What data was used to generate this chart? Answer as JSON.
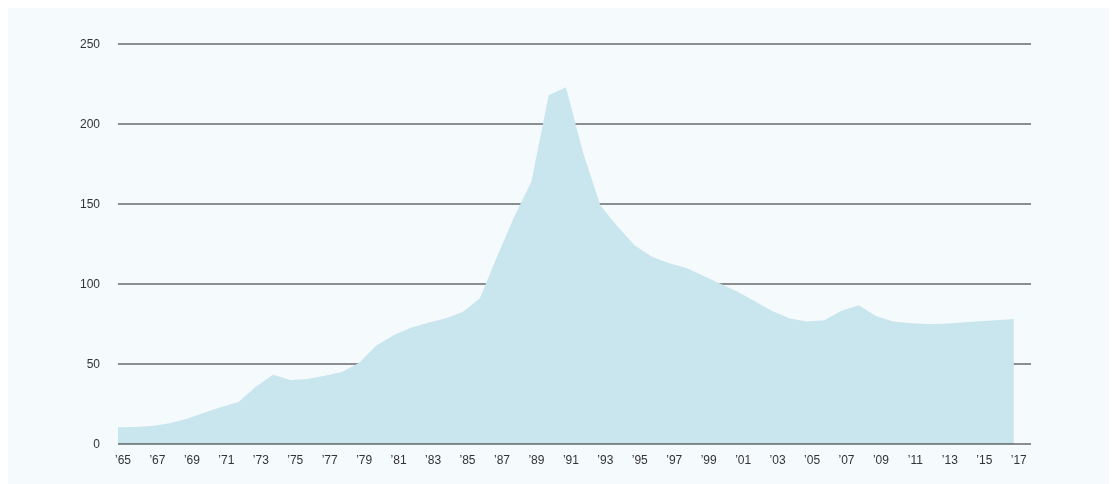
{
  "chart_data": {
    "type": "area",
    "x": [
      1965,
      1966,
      1967,
      1968,
      1969,
      1970,
      1971,
      1972,
      1973,
      1974,
      1975,
      1976,
      1977,
      1978,
      1979,
      1980,
      1981,
      1982,
      1983,
      1984,
      1985,
      1986,
      1987,
      1988,
      1989,
      1990,
      1991,
      1992,
      1993,
      1994,
      1995,
      1996,
      1997,
      1998,
      1999,
      2000,
      2001,
      2002,
      2003,
      2004,
      2005,
      2006,
      2007,
      2008,
      2009,
      2010,
      2011,
      2012,
      2013,
      2014,
      2015,
      2016,
      2017
    ],
    "series": [
      {
        "color": "#c9e5ee",
        "values": [
          10.5,
          10.6,
          11.2,
          12.9,
          15.8,
          19.6,
          23.1,
          26.2,
          35.8,
          43.3,
          40,
          40.6,
          42.7,
          45,
          50.8,
          61.5,
          67.9,
          72.7,
          75.8,
          78.5,
          82.5,
          91,
          117,
          142,
          164,
          218,
          223,
          182,
          149,
          136,
          124,
          117,
          113,
          110,
          105,
          100,
          95,
          89,
          83,
          78.5,
          76.5,
          77.3,
          83.3,
          86.7,
          80,
          76.5,
          75.4,
          75,
          75.2,
          75.9,
          76.7,
          77.3,
          78.1
        ]
      }
    ],
    "xlim": [
      1965,
      2018
    ],
    "xticks": [
      {
        "value": 1965,
        "label": "’65"
      },
      {
        "value": 1967,
        "label": "’67"
      },
      {
        "value": 1969,
        "label": "’69"
      },
      {
        "value": 1971,
        "label": "’71"
      },
      {
        "value": 1973,
        "label": "’73"
      },
      {
        "value": 1975,
        "label": "’75"
      },
      {
        "value": 1977,
        "label": "’77"
      },
      {
        "value": 1979,
        "label": "’79"
      },
      {
        "value": 1981,
        "label": "’81"
      },
      {
        "value": 1983,
        "label": "’83"
      },
      {
        "value": 1985,
        "label": "’85"
      },
      {
        "value": 1987,
        "label": "’87"
      },
      {
        "value": 1989,
        "label": "’89"
      },
      {
        "value": 1991,
        "label": "’91"
      },
      {
        "value": 1993,
        "label": "’93"
      },
      {
        "value": 1995,
        "label": "’95"
      },
      {
        "value": 1997,
        "label": "’97"
      },
      {
        "value": 1999,
        "label": "’99"
      },
      {
        "value": 2001,
        "label": "’01"
      },
      {
        "value": 2003,
        "label": "’03"
      },
      {
        "value": 2005,
        "label": "’05"
      },
      {
        "value": 2007,
        "label": "’07"
      },
      {
        "value": 2009,
        "label": "’09"
      },
      {
        "value": 2011,
        "label": "’11"
      },
      {
        "value": 2013,
        "label": "’13"
      },
      {
        "value": 2015,
        "label": "’15"
      },
      {
        "value": 2017,
        "label": "’17"
      }
    ],
    "ylim": [
      0,
      250
    ],
    "yticks": [
      0,
      50,
      100,
      150,
      200,
      250
    ],
    "grid": "y"
  }
}
